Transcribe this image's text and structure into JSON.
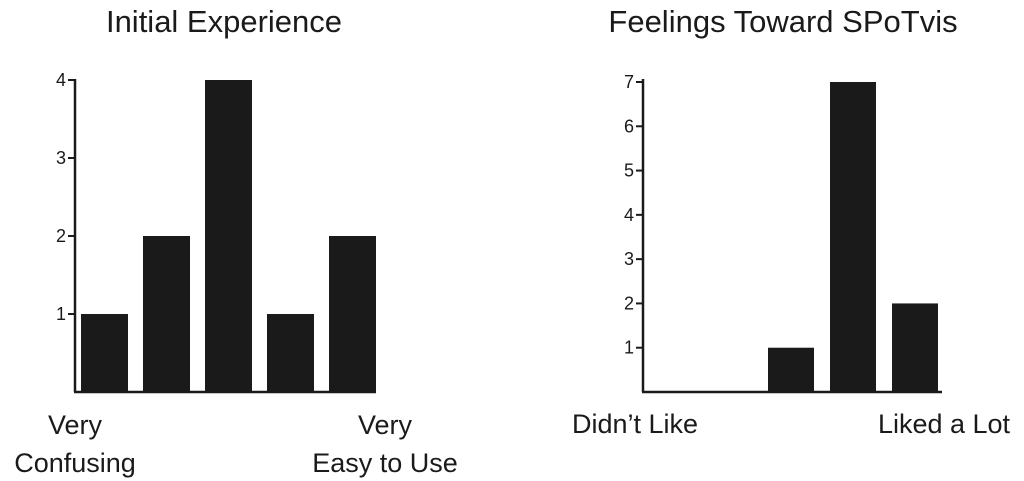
{
  "chart_data": [
    {
      "type": "bar",
      "title": "Initial Experience",
      "categories": [
        "1",
        "2",
        "3",
        "4",
        "5"
      ],
      "values": [
        1,
        2,
        4,
        1,
        2
      ],
      "yticks": [
        1,
        2,
        3,
        4
      ],
      "ylim": [
        0,
        4
      ],
      "left_label": [
        "Very",
        "Confusing"
      ],
      "right_label": [
        "Very",
        "Easy to Use"
      ],
      "bar_color": "#1a1a1a",
      "grid": false,
      "legend": "none"
    },
    {
      "type": "bar",
      "title": "Feelings Toward SPoTvis",
      "categories": [
        "1",
        "2",
        "3",
        "4",
        "5"
      ],
      "values": [
        0,
        0,
        1,
        7,
        2
      ],
      "yticks": [
        1,
        2,
        3,
        4,
        5,
        6,
        7
      ],
      "ylim": [
        0,
        7
      ],
      "left_label": [
        "Didn’t Like"
      ],
      "right_label": [
        "Liked a Lot"
      ],
      "bar_color": "#1a1a1a",
      "grid": false,
      "legend": "none"
    }
  ]
}
